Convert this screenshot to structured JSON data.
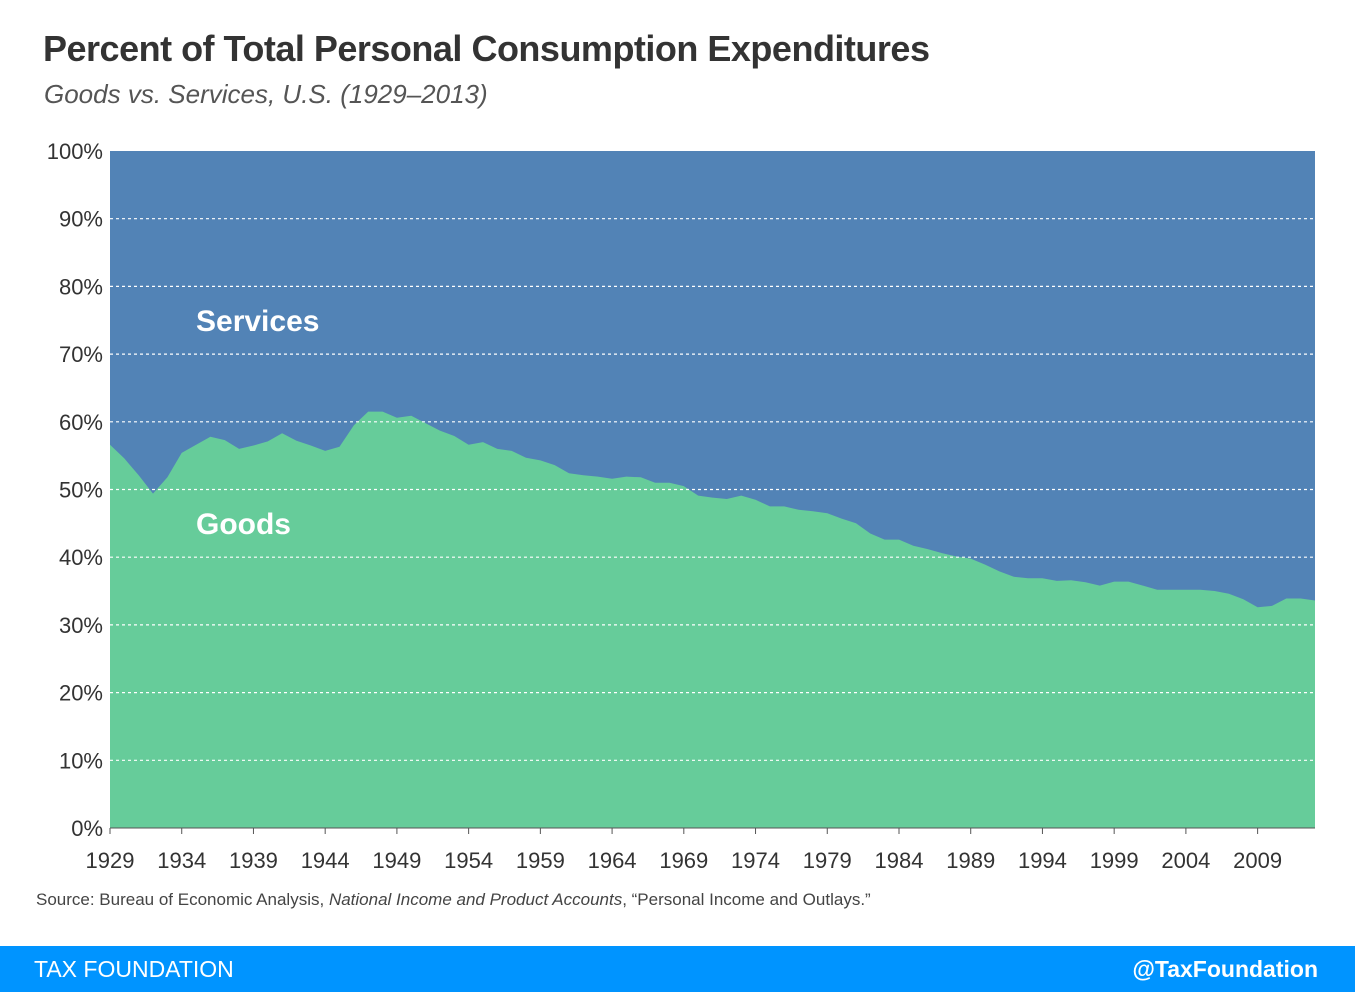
{
  "header": {
    "title": "Percent of Total Personal Consumption Expenditures",
    "subtitle": "Goods vs. Services, U.S. (1929–2013)"
  },
  "chart_data": {
    "type": "area",
    "stacked": true,
    "title": "Percent of Total Personal Consumption Expenditures",
    "subtitle": "Goods vs. Services, U.S. (1929–2013)",
    "ylim": [
      0,
      100
    ],
    "y_ticks": [
      "0%",
      "10%",
      "20%",
      "30%",
      "40%",
      "50%",
      "60%",
      "70%",
      "80%",
      "90%",
      "100%"
    ],
    "y_tick_values": [
      0,
      10,
      20,
      30,
      40,
      50,
      60,
      70,
      80,
      90,
      100
    ],
    "x_ticks": [
      "1929",
      "1934",
      "1939",
      "1944",
      "1949",
      "1954",
      "1959",
      "1964",
      "1969",
      "1974",
      "1979",
      "1984",
      "1989",
      "1994",
      "1999",
      "2004",
      "2009"
    ],
    "x_tick_values": [
      1929,
      1934,
      1939,
      1944,
      1949,
      1954,
      1959,
      1964,
      1969,
      1974,
      1979,
      1984,
      1989,
      1994,
      1999,
      2004,
      2009
    ],
    "xlim": [
      1929,
      2013
    ],
    "grid": true,
    "colors": {
      "goods": "#66cc9a",
      "services": "#5283b6",
      "grid": "#ffffff"
    },
    "x": [
      1929,
      1930,
      1931,
      1932,
      1933,
      1934,
      1935,
      1936,
      1937,
      1938,
      1939,
      1940,
      1941,
      1942,
      1943,
      1944,
      1945,
      1946,
      1947,
      1948,
      1949,
      1950,
      1951,
      1952,
      1953,
      1954,
      1955,
      1956,
      1957,
      1958,
      1959,
      1960,
      1961,
      1962,
      1963,
      1964,
      1965,
      1966,
      1967,
      1968,
      1969,
      1970,
      1971,
      1972,
      1973,
      1974,
      1975,
      1976,
      1977,
      1978,
      1979,
      1980,
      1981,
      1982,
      1983,
      1984,
      1985,
      1986,
      1987,
      1988,
      1989,
      1990,
      1991,
      1992,
      1993,
      1994,
      1995,
      1996,
      1997,
      1998,
      1999,
      2000,
      2001,
      2002,
      2003,
      2004,
      2005,
      2006,
      2007,
      2008,
      2009,
      2010,
      2011,
      2012,
      2013
    ],
    "series": [
      {
        "name": "Goods",
        "values": [
          56.6,
          54.6,
          52.1,
          49.4,
          51.8,
          55.4,
          56.6,
          57.8,
          57.3,
          56.0,
          56.5,
          57.1,
          58.3,
          57.2,
          56.5,
          55.7,
          56.3,
          59.5,
          61.5,
          61.5,
          60.6,
          60.9,
          59.8,
          58.7,
          57.9,
          56.6,
          57.0,
          56.0,
          55.7,
          54.7,
          54.3,
          53.6,
          52.4,
          52.1,
          51.9,
          51.6,
          51.9,
          51.8,
          51.0,
          51.0,
          50.5,
          49.1,
          48.8,
          48.6,
          49.1,
          48.5,
          47.5,
          47.5,
          47.0,
          46.8,
          46.5,
          45.7,
          45.0,
          43.5,
          42.6,
          42.6,
          41.7,
          41.2,
          40.6,
          40.1,
          39.8,
          38.9,
          37.9,
          37.1,
          36.9,
          36.9,
          36.5,
          36.6,
          36.3,
          35.8,
          36.4,
          36.4,
          35.8,
          35.2,
          35.2,
          35.2,
          35.2,
          35.0,
          34.6,
          33.8,
          32.6,
          32.8,
          33.9,
          33.9,
          33.6
        ]
      },
      {
        "name": "Services",
        "values": [
          43.4,
          45.4,
          47.9,
          50.6,
          48.2,
          44.6,
          43.4,
          42.2,
          42.7,
          44.0,
          43.5,
          42.9,
          41.7,
          42.8,
          43.5,
          44.3,
          43.7,
          40.5,
          38.5,
          38.5,
          39.4,
          39.1,
          40.2,
          41.3,
          42.1,
          43.4,
          43.0,
          44.0,
          44.3,
          45.3,
          45.7,
          46.4,
          47.6,
          47.9,
          48.1,
          48.4,
          48.1,
          48.2,
          49.0,
          49.0,
          49.5,
          50.9,
          51.2,
          51.4,
          50.9,
          51.5,
          52.5,
          52.5,
          53.0,
          53.2,
          53.5,
          54.3,
          55.0,
          56.5,
          57.4,
          57.4,
          58.3,
          58.8,
          59.4,
          59.9,
          60.2,
          61.1,
          62.1,
          62.9,
          63.1,
          63.1,
          63.5,
          63.4,
          63.7,
          64.2,
          63.6,
          63.6,
          64.2,
          64.8,
          64.8,
          64.8,
          64.8,
          65.0,
          65.4,
          66.2,
          67.4,
          67.2,
          66.1,
          66.1,
          66.4
        ]
      }
    ],
    "annotations": [
      "Services",
      "Goods"
    ]
  },
  "source": {
    "prefix": "Source: Bureau of Economic Analysis, ",
    "italic": "National Income and Product Accounts",
    "suffix": ", “Personal Income and Outlays.”"
  },
  "footer": {
    "brand": "TAX FOUNDATION",
    "handle": "@TaxFoundation",
    "background": "#0094ff"
  }
}
